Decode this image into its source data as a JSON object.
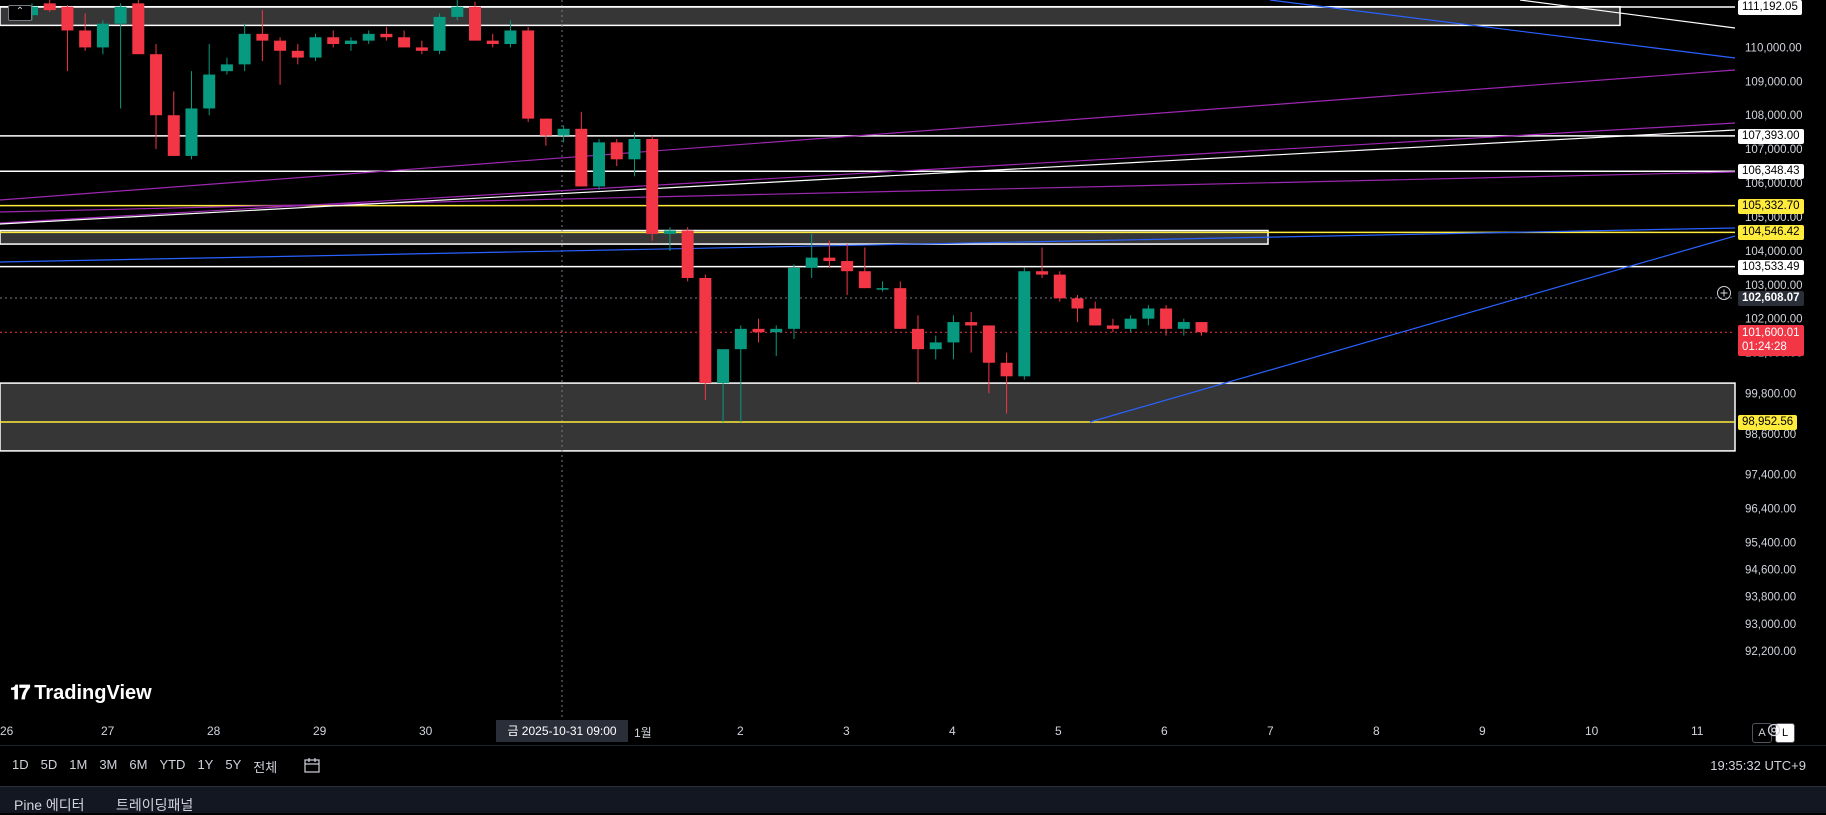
{
  "logo": {
    "text": "TradingView",
    "icon": "tradingview-logo-icon"
  },
  "price_axis": {
    "ticks": [
      "111,192.05",
      "110,000.00",
      "109,000.00",
      "108,000.00",
      "107,000.00",
      "106,000.00",
      "105,000.00",
      "104,000.00",
      "103,000.00",
      "102,000.00",
      "101,000.00",
      "99,800.00",
      "98,600.00",
      "97,400.00",
      "96,400.00",
      "95,400.00",
      "94,600.00",
      "93,800.00",
      "93,000.00",
      "92,200.00"
    ],
    "ticks_values": [
      111192.05,
      110000,
      109000,
      108000,
      107000,
      106000,
      105000,
      104000,
      103000,
      102000,
      101000,
      99800,
      98600,
      97400,
      96400,
      95400,
      94600,
      93800,
      93000,
      92200
    ],
    "labels": [
      {
        "text": "111,192.05",
        "style": "white",
        "price": 111192.05
      },
      {
        "text": "107,393.00",
        "style": "white",
        "price": 107393
      },
      {
        "text": "106,348.43",
        "style": "white",
        "price": 106348.43
      },
      {
        "text": "105,332.70",
        "style": "yellow",
        "price": 105332.7
      },
      {
        "text": "104,546.42",
        "style": "yellow",
        "price": 104546.42
      },
      {
        "text": "103,533.49",
        "style": "white",
        "price": 103533.49
      },
      {
        "text": "102,608.07",
        "style": "gray",
        "price": 102608.07
      },
      {
        "text": "98,952.56",
        "style": "yellow",
        "price": 98952.56
      }
    ],
    "current_price": {
      "text": "101,600.01",
      "countdown": "01:24:28",
      "price": 101600.01
    }
  },
  "time_axis": {
    "labels": [
      "26",
      "27",
      "28",
      "29",
      "30",
      "1월",
      "2",
      "3",
      "4",
      "5",
      "6",
      "7",
      "8",
      "9",
      "10",
      "11"
    ],
    "crosshair_label": "금 2025-10-31   09:00"
  },
  "chart_data": {
    "type": "candlestick",
    "candle_interval": "8h",
    "candles": [
      {
        "o": 110950,
        "h": 111300,
        "l": 110800,
        "c": 111200
      },
      {
        "o": 111300,
        "h": 111400,
        "l": 111050,
        "c": 111100
      },
      {
        "o": 111200,
        "h": 111250,
        "l": 109300,
        "c": 110500
      },
      {
        "o": 110500,
        "h": 111000,
        "l": 109900,
        "c": 110000
      },
      {
        "o": 110000,
        "h": 110800,
        "l": 109800,
        "c": 110700
      },
      {
        "o": 110700,
        "h": 111300,
        "l": 108200,
        "c": 111200
      },
      {
        "o": 111300,
        "h": 111400,
        "l": 109800,
        "c": 109800
      },
      {
        "o": 109800,
        "h": 110100,
        "l": 107000,
        "c": 108000
      },
      {
        "o": 108000,
        "h": 108700,
        "l": 106800,
        "c": 106800
      },
      {
        "o": 106800,
        "h": 109300,
        "l": 106700,
        "c": 108200
      },
      {
        "o": 108200,
        "h": 110100,
        "l": 108000,
        "c": 109200
      },
      {
        "o": 109300,
        "h": 109700,
        "l": 109200,
        "c": 109500
      },
      {
        "o": 109500,
        "h": 110700,
        "l": 109300,
        "c": 110400
      },
      {
        "o": 110400,
        "h": 111100,
        "l": 109600,
        "c": 110200
      },
      {
        "o": 110200,
        "h": 110300,
        "l": 108900,
        "c": 109900
      },
      {
        "o": 109900,
        "h": 110100,
        "l": 109500,
        "c": 109700
      },
      {
        "o": 109700,
        "h": 110400,
        "l": 109600,
        "c": 110300
      },
      {
        "o": 110300,
        "h": 110500,
        "l": 110000,
        "c": 110100
      },
      {
        "o": 110100,
        "h": 110300,
        "l": 109900,
        "c": 110200
      },
      {
        "o": 110200,
        "h": 110500,
        "l": 110100,
        "c": 110400
      },
      {
        "o": 110400,
        "h": 110600,
        "l": 110200,
        "c": 110300
      },
      {
        "o": 110300,
        "h": 110500,
        "l": 110000,
        "c": 110000
      },
      {
        "o": 110000,
        "h": 110200,
        "l": 109800,
        "c": 109900
      },
      {
        "o": 109900,
        "h": 111000,
        "l": 109800,
        "c": 110900
      },
      {
        "o": 110900,
        "h": 111400,
        "l": 110800,
        "c": 111200
      },
      {
        "o": 111200,
        "h": 111350,
        "l": 110200,
        "c": 110200
      },
      {
        "o": 110200,
        "h": 110400,
        "l": 110000,
        "c": 110100
      },
      {
        "o": 110100,
        "h": 110800,
        "l": 110000,
        "c": 110500
      },
      {
        "o": 110500,
        "h": 110600,
        "l": 107800,
        "c": 107900
      },
      {
        "o": 107900,
        "h": 107900,
        "l": 107100,
        "c": 107400
      },
      {
        "o": 107400,
        "h": 107700,
        "l": 107200,
        "c": 107600
      },
      {
        "o": 107600,
        "h": 108100,
        "l": 105900,
        "c": 105900
      },
      {
        "o": 105900,
        "h": 107300,
        "l": 105800,
        "c": 107200
      },
      {
        "o": 107200,
        "h": 107300,
        "l": 106500,
        "c": 106700
      },
      {
        "o": 106700,
        "h": 107500,
        "l": 106200,
        "c": 107300
      },
      {
        "o": 107300,
        "h": 107400,
        "l": 104300,
        "c": 104500
      },
      {
        "o": 104500,
        "h": 104700,
        "l": 104000,
        "c": 104600
      },
      {
        "o": 104600,
        "h": 104700,
        "l": 103100,
        "c": 103200
      },
      {
        "o": 103200,
        "h": 103300,
        "l": 99600,
        "c": 100100
      },
      {
        "o": 100100,
        "h": 101100,
        "l": 98950,
        "c": 101100
      },
      {
        "o": 101100,
        "h": 101800,
        "l": 98950,
        "c": 101700
      },
      {
        "o": 101700,
        "h": 102000,
        "l": 101300,
        "c": 101600
      },
      {
        "o": 101600,
        "h": 101800,
        "l": 100900,
        "c": 101700
      },
      {
        "o": 101700,
        "h": 103600,
        "l": 101400,
        "c": 103500
      },
      {
        "o": 103500,
        "h": 104500,
        "l": 103200,
        "c": 103800
      },
      {
        "o": 103800,
        "h": 104300,
        "l": 103500,
        "c": 103700
      },
      {
        "o": 103700,
        "h": 104200,
        "l": 102700,
        "c": 103400
      },
      {
        "o": 103400,
        "h": 104100,
        "l": 102900,
        "c": 102900
      },
      {
        "o": 102900,
        "h": 103100,
        "l": 102800,
        "c": 102900
      },
      {
        "o": 102900,
        "h": 103100,
        "l": 101700,
        "c": 101700
      },
      {
        "o": 101700,
        "h": 102100,
        "l": 100100,
        "c": 101100
      },
      {
        "o": 101100,
        "h": 101500,
        "l": 100800,
        "c": 101300
      },
      {
        "o": 101300,
        "h": 102100,
        "l": 100800,
        "c": 101900
      },
      {
        "o": 101900,
        "h": 102200,
        "l": 101000,
        "c": 101800
      },
      {
        "o": 101800,
        "h": 101800,
        "l": 99800,
        "c": 100700
      },
      {
        "o": 100700,
        "h": 101000,
        "l": 99200,
        "c": 100300
      },
      {
        "o": 100300,
        "h": 103500,
        "l": 100200,
        "c": 103400
      },
      {
        "o": 103400,
        "h": 104100,
        "l": 103200,
        "c": 103300
      },
      {
        "o": 103300,
        "h": 103400,
        "l": 102500,
        "c": 102600
      },
      {
        "o": 102600,
        "h": 102700,
        "l": 101900,
        "c": 102300
      },
      {
        "o": 102300,
        "h": 102500,
        "l": 101800,
        "c": 101800
      },
      {
        "o": 101800,
        "h": 102000,
        "l": 101600,
        "c": 101700
      },
      {
        "o": 101700,
        "h": 102100,
        "l": 101600,
        "c": 102000
      },
      {
        "o": 102000,
        "h": 102400,
        "l": 101800,
        "c": 102300
      },
      {
        "o": 102300,
        "h": 102400,
        "l": 101500,
        "c": 101700
      },
      {
        "o": 101700,
        "h": 102000,
        "l": 101500,
        "c": 101900
      },
      {
        "o": 101900,
        "h": 101900,
        "l": 101500,
        "c": 101600
      }
    ],
    "horizontal_levels": [
      {
        "price": 111192.05,
        "color": "#ffffff"
      },
      {
        "price": 107393,
        "color": "#ffffff"
      },
      {
        "price": 106348.43,
        "color": "#ffffff"
      },
      {
        "price": 105332.7,
        "color": "#ffeb3b"
      },
      {
        "price": 104546.42,
        "color": "#ffeb3b"
      },
      {
        "price": 103533.49,
        "color": "#ffffff"
      },
      {
        "price": 98952.56,
        "color": "#ffeb3b"
      }
    ],
    "zones": [
      {
        "top": 111200,
        "bottom": 110650
      },
      {
        "top": 104600,
        "bottom": 104200
      },
      {
        "top": 100100,
        "bottom": 98100
      }
    ],
    "colors": {
      "up": "#089981",
      "down": "#f23645",
      "trend_blue": "#2962ff",
      "trend_purple": "#9c27b0"
    }
  },
  "toolbar": {
    "ranges": [
      "1D",
      "5D",
      "1M",
      "3M",
      "6M",
      "YTD",
      "1Y",
      "5Y",
      "전체"
    ],
    "compare_icon": "calendar-range-icon",
    "clock": "19:35:32 UTC+9"
  },
  "axis_buttons": {
    "auto": "A",
    "log": "L"
  },
  "panels": {
    "tabs": [
      "Pine 에디터",
      "트레이딩패널"
    ]
  }
}
